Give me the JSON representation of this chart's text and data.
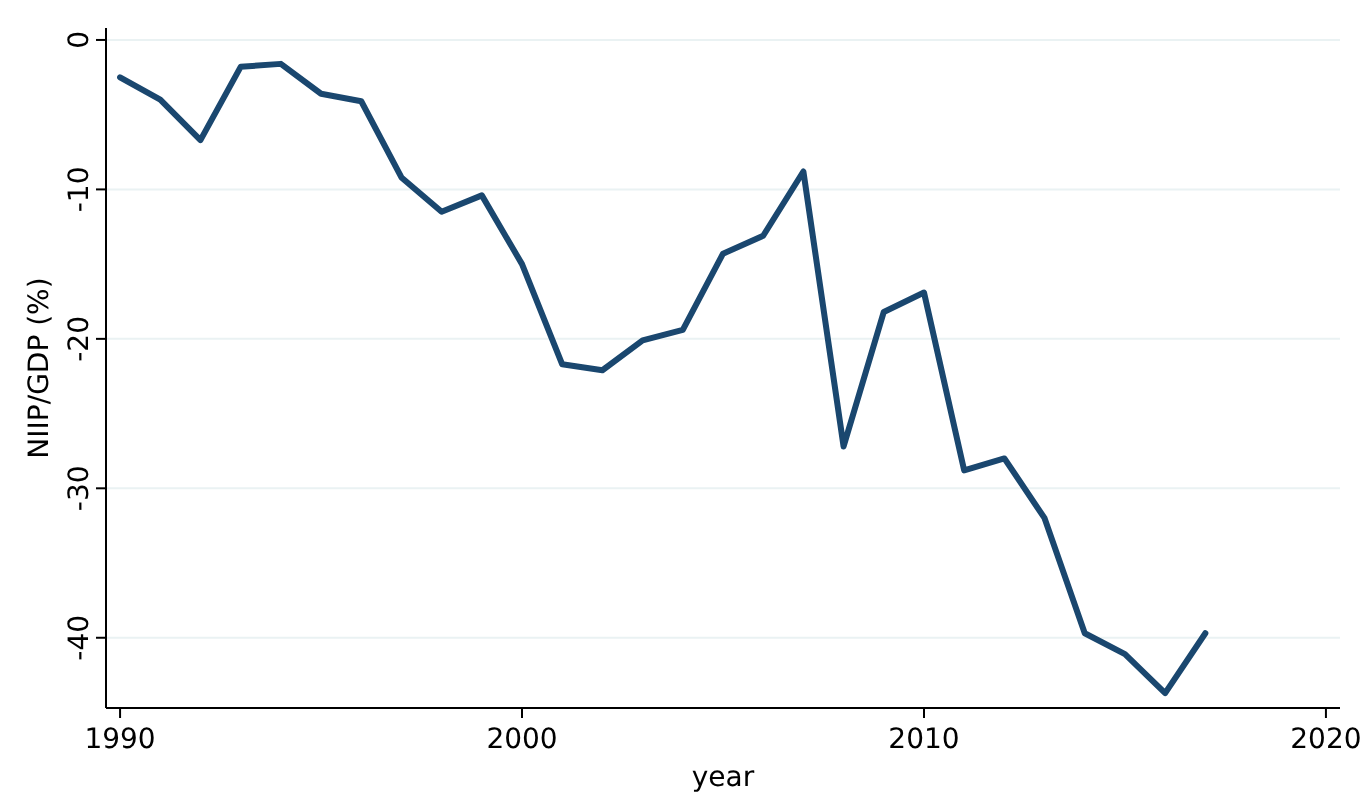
{
  "chart_data": {
    "type": "line",
    "xlabel": "year",
    "ylabel": "NIIP/GDP (%)",
    "x": [
      1990,
      1991,
      1992,
      1993,
      1994,
      1995,
      1996,
      1997,
      1998,
      1999,
      2000,
      2001,
      2002,
      2003,
      2004,
      2005,
      2006,
      2007,
      2008,
      2009,
      2010,
      2011,
      2012,
      2013,
      2014,
      2015,
      2016,
      2017
    ],
    "series": [
      {
        "color": "#1a476f",
        "values": [
          -2.5,
          -4.0,
          -6.7,
          -1.8,
          -1.6,
          -3.6,
          -4.1,
          -9.2,
          -11.5,
          -10.4,
          -15.0,
          -21.7,
          -22.1,
          -20.1,
          -19.4,
          -14.3,
          -13.1,
          -8.8,
          -27.2,
          -18.2,
          -16.9,
          -28.8,
          -28.0,
          -32.0,
          -39.7,
          -41.1,
          -43.7,
          -39.7
        ]
      }
    ],
    "xlim": [
      1989.65,
      2020.35
    ],
    "ylim": [
      -44.7,
      0.8
    ],
    "xticks": [
      1990,
      2000,
      2010,
      2020
    ],
    "yticks": [
      0,
      -10,
      -20,
      -30,
      -40
    ],
    "grid": "y",
    "marker": "none",
    "line_style": "solid"
  }
}
